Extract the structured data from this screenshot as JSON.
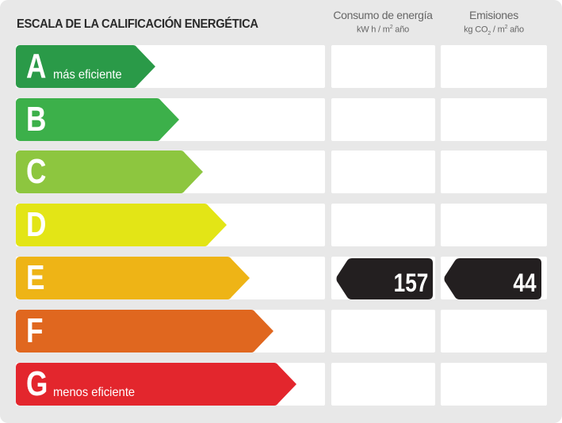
{
  "title": "ESCALA DE LA CALIFICACIÓN ENERGÉTICA",
  "columns": {
    "consumo": {
      "label": "Consumo de energía",
      "unit_pre": "kW h / m",
      "unit_sup": "2",
      "unit_post": " año"
    },
    "emisiones": {
      "label": "Emisiones",
      "unit_pre": "kg CO",
      "unit_sub": "2",
      "unit_mid": " / m",
      "unit_sup": "2",
      "unit_post": " año"
    }
  },
  "ratings": [
    {
      "letter": "A",
      "label": "más eficiente",
      "color": "#2a9a48"
    },
    {
      "letter": "B",
      "label": "",
      "color": "#3cb04a"
    },
    {
      "letter": "C",
      "label": "",
      "color": "#8dc63f"
    },
    {
      "letter": "D",
      "label": "",
      "color": "#e3e516"
    },
    {
      "letter": "E",
      "label": "",
      "color": "#eeb416"
    },
    {
      "letter": "F",
      "label": "",
      "color": "#e0671f"
    },
    {
      "letter": "G",
      "label": "menos eficiente",
      "color": "#e3262d"
    }
  ],
  "result": {
    "rating": "E",
    "consumo": "157",
    "emisiones": "44",
    "tag_color": "#231f20"
  }
}
